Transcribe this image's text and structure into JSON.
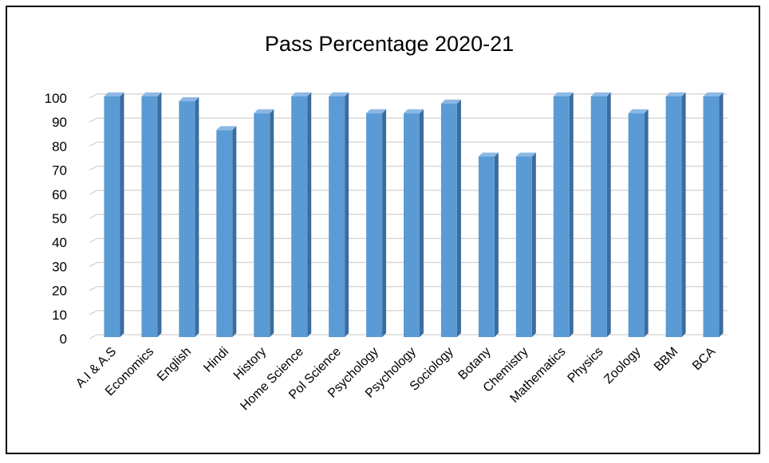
{
  "chart_data": {
    "type": "bar",
    "title": "Pass Percentage 2020-21",
    "xlabel": "",
    "ylabel": "",
    "categories": [
      "A.I & A.S",
      "Economics",
      "English",
      "Hindi",
      "History",
      "Home Science",
      "Pol Science",
      "Psychology",
      "Psychology",
      "Sociology",
      "Botany",
      "Chemistry",
      "Mathematics",
      "Physics",
      "Zoology",
      "BBM",
      "BCA"
    ],
    "values": [
      100,
      100,
      98,
      86,
      93,
      100,
      100,
      93,
      93,
      97,
      75,
      75,
      100,
      100,
      93,
      100,
      100
    ],
    "ylim": [
      0,
      100
    ],
    "yticks": [
      0,
      10,
      20,
      30,
      40,
      50,
      60,
      70,
      80,
      90,
      100
    ],
    "grid": true,
    "legend": "none",
    "style": "3d-column",
    "colors": {
      "bar_front": "#5b9bd5",
      "bar_side": "#3b6d9e",
      "bar_top": "#8db8e4",
      "grid": "#d9d9d9"
    }
  }
}
